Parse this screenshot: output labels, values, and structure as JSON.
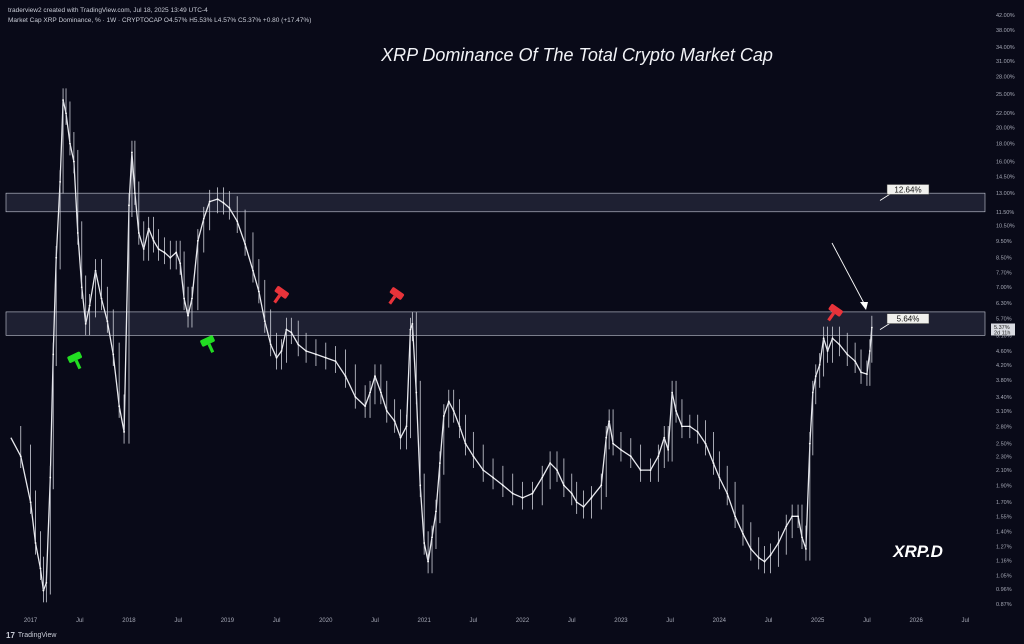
{
  "header": {
    "creator": "traderview2 created with TradingView.com, Jul 18, 2025 13:49 UTC-4",
    "legend": "Market Cap XRP Dominance, % · 1W · CRYPTOCAP  O4.57%  H5.53%  L4.57%  C5.37%  +0.80 (+17.47%)"
  },
  "footer": {
    "brand": "TradingView",
    "logo": "17"
  },
  "chart_data": {
    "type": "line",
    "title": "XRP Dominance Of The Total Crypto Market Cap",
    "symbol": "XRP.D",
    "ylabel": "",
    "xlabel": "",
    "y_scale": "log",
    "ylim": [
      0.82,
      42
    ],
    "y_ticks": [
      42.0,
      38.0,
      34.0,
      31.0,
      28.0,
      25.0,
      22.0,
      20.0,
      18.0,
      16.0,
      14.5,
      13.0,
      11.5,
      10.5,
      9.5,
      8.5,
      7.7,
      7.0,
      6.3,
      5.7,
      5.1,
      4.6,
      4.2,
      3.8,
      3.4,
      3.1,
      2.8,
      2.5,
      2.3,
      2.1,
      1.9,
      1.7,
      1.55,
      1.4,
      1.27,
      1.16,
      1.05,
      0.96,
      0.87
    ],
    "y_tick_labels": [
      "42.00%",
      "38.00%",
      "34.00%",
      "31.00%",
      "28.00%",
      "25.00%",
      "22.00%",
      "20.00%",
      "18.00%",
      "16.00%",
      "14.50%",
      "13.00%",
      "11.50%",
      "10.50%",
      "9.50%",
      "8.50%",
      "7.70%",
      "7.00%",
      "6.30%",
      "5.70%",
      "5.10%",
      "4.60%",
      "4.20%",
      "3.80%",
      "3.40%",
      "3.10%",
      "2.80%",
      "2.50%",
      "2.30%",
      "2.10%",
      "1.90%",
      "1.70%",
      "1.55%",
      "1.40%",
      "1.27%",
      "1.16%",
      "1.05%",
      "0.96%",
      "0.87%"
    ],
    "x_ticks": [
      {
        "label": "2017",
        "t": 2017.0
      },
      {
        "label": "Jul",
        "t": 2017.5
      },
      {
        "label": "2018",
        "t": 2018.0
      },
      {
        "label": "Jul",
        "t": 2018.5
      },
      {
        "label": "2019",
        "t": 2019.0
      },
      {
        "label": "Jul",
        "t": 2019.5
      },
      {
        "label": "2020",
        "t": 2020.0
      },
      {
        "label": "Jul",
        "t": 2020.5
      },
      {
        "label": "2021",
        "t": 2021.0
      },
      {
        "label": "Jul",
        "t": 2021.5
      },
      {
        "label": "2022",
        "t": 2022.0
      },
      {
        "label": "Jul",
        "t": 2022.5
      },
      {
        "label": "2023",
        "t": 2023.0
      },
      {
        "label": "Jul",
        "t": 2023.5
      },
      {
        "label": "2024",
        "t": 2024.0
      },
      {
        "label": "Jul",
        "t": 2024.5
      },
      {
        "label": "2025",
        "t": 2025.0
      },
      {
        "label": "Jul",
        "t": 2025.5
      },
      {
        "label": "2026",
        "t": 2026.0
      },
      {
        "label": "Jul",
        "t": 2026.5
      }
    ],
    "xlim": [
      2016.75,
      2026.7
    ],
    "series": [
      {
        "values": [
          [
            2016.8,
            2.6
          ],
          [
            2016.9,
            2.3
          ],
          [
            2017.0,
            1.7
          ],
          [
            2017.05,
            1.3
          ],
          [
            2017.1,
            1.1
          ],
          [
            2017.13,
            0.95
          ],
          [
            2017.16,
            1.0
          ],
          [
            2017.2,
            2.0
          ],
          [
            2017.23,
            4.5
          ],
          [
            2017.26,
            8.5
          ],
          [
            2017.3,
            14.0
          ],
          [
            2017.33,
            24.0
          ],
          [
            2017.36,
            22.0
          ],
          [
            2017.4,
            18.0
          ],
          [
            2017.44,
            16.0
          ],
          [
            2017.48,
            10.0
          ],
          [
            2017.52,
            7.0
          ],
          [
            2017.56,
            5.5
          ],
          [
            2017.6,
            6.2
          ],
          [
            2017.66,
            7.8
          ],
          [
            2017.72,
            6.5
          ],
          [
            2017.78,
            5.6
          ],
          [
            2017.84,
            4.5
          ],
          [
            2017.9,
            3.2
          ],
          [
            2017.95,
            2.7
          ],
          [
            2018.0,
            12.0
          ],
          [
            2018.03,
            17.0
          ],
          [
            2018.06,
            13.0
          ],
          [
            2018.1,
            10.0
          ],
          [
            2018.15,
            9.0
          ],
          [
            2018.2,
            10.3
          ],
          [
            2018.25,
            9.5
          ],
          [
            2018.3,
            9.0
          ],
          [
            2018.36,
            8.8
          ],
          [
            2018.42,
            8.5
          ],
          [
            2018.48,
            8.8
          ],
          [
            2018.52,
            8.2
          ],
          [
            2018.56,
            6.5
          ],
          [
            2018.6,
            5.8
          ],
          [
            2018.64,
            6.5
          ],
          [
            2018.7,
            9.5
          ],
          [
            2018.76,
            11.0
          ],
          [
            2018.82,
            12.3
          ],
          [
            2018.9,
            12.5
          ],
          [
            2018.96,
            12.2
          ],
          [
            2019.02,
            11.8
          ],
          [
            2019.1,
            10.8
          ],
          [
            2019.18,
            9.3
          ],
          [
            2019.26,
            7.8
          ],
          [
            2019.32,
            6.8
          ],
          [
            2019.38,
            5.6
          ],
          [
            2019.44,
            4.8
          ],
          [
            2019.5,
            4.4
          ],
          [
            2019.55,
            4.6
          ],
          [
            2019.6,
            5.3
          ],
          [
            2019.65,
            5.2
          ],
          [
            2019.72,
            4.8
          ],
          [
            2019.8,
            4.6
          ],
          [
            2019.9,
            4.5
          ],
          [
            2020.0,
            4.4
          ],
          [
            2020.1,
            4.3
          ],
          [
            2020.2,
            3.9
          ],
          [
            2020.3,
            3.4
          ],
          [
            2020.4,
            3.2
          ],
          [
            2020.45,
            3.5
          ],
          [
            2020.5,
            3.9
          ],
          [
            2020.56,
            3.5
          ],
          [
            2020.62,
            3.1
          ],
          [
            2020.7,
            2.9
          ],
          [
            2020.76,
            2.6
          ],
          [
            2020.82,
            2.8
          ],
          [
            2020.86,
            5.3
          ],
          [
            2020.88,
            5.5
          ],
          [
            2020.92,
            3.5
          ],
          [
            2020.96,
            1.9
          ],
          [
            2021.0,
            1.3
          ],
          [
            2021.04,
            1.15
          ],
          [
            2021.08,
            1.35
          ],
          [
            2021.12,
            1.6
          ],
          [
            2021.16,
            2.2
          ],
          [
            2021.2,
            3.0
          ],
          [
            2021.25,
            3.3
          ],
          [
            2021.3,
            3.1
          ],
          [
            2021.36,
            2.8
          ],
          [
            2021.42,
            2.5
          ],
          [
            2021.5,
            2.3
          ],
          [
            2021.6,
            2.1
          ],
          [
            2021.7,
            2.0
          ],
          [
            2021.8,
            1.9
          ],
          [
            2021.9,
            1.8
          ],
          [
            2022.0,
            1.75
          ],
          [
            2022.1,
            1.8
          ],
          [
            2022.2,
            2.0
          ],
          [
            2022.28,
            2.2
          ],
          [
            2022.35,
            2.1
          ],
          [
            2022.42,
            1.9
          ],
          [
            2022.5,
            1.8
          ],
          [
            2022.55,
            1.7
          ],
          [
            2022.62,
            1.65
          ],
          [
            2022.7,
            1.75
          ],
          [
            2022.8,
            1.9
          ],
          [
            2022.85,
            2.6
          ],
          [
            2022.88,
            2.9
          ],
          [
            2022.92,
            2.5
          ],
          [
            2023.0,
            2.4
          ],
          [
            2023.1,
            2.3
          ],
          [
            2023.2,
            2.1
          ],
          [
            2023.3,
            2.1
          ],
          [
            2023.38,
            2.3
          ],
          [
            2023.44,
            2.6
          ],
          [
            2023.48,
            2.4
          ],
          [
            2023.52,
            3.5
          ],
          [
            2023.56,
            3.1
          ],
          [
            2023.62,
            2.8
          ],
          [
            2023.7,
            2.8
          ],
          [
            2023.78,
            2.7
          ],
          [
            2023.86,
            2.5
          ],
          [
            2023.94,
            2.2
          ],
          [
            2024.0,
            2.0
          ],
          [
            2024.08,
            1.8
          ],
          [
            2024.16,
            1.55
          ],
          [
            2024.24,
            1.38
          ],
          [
            2024.32,
            1.25
          ],
          [
            2024.4,
            1.18
          ],
          [
            2024.46,
            1.15
          ],
          [
            2024.52,
            1.2
          ],
          [
            2024.6,
            1.3
          ],
          [
            2024.68,
            1.45
          ],
          [
            2024.74,
            1.55
          ],
          [
            2024.8,
            1.55
          ],
          [
            2024.84,
            1.35
          ],
          [
            2024.88,
            1.25
          ],
          [
            2024.92,
            2.5
          ],
          [
            2024.95,
            3.5
          ],
          [
            2024.98,
            3.9
          ],
          [
            2025.02,
            4.2
          ],
          [
            2025.06,
            5.0
          ],
          [
            2025.1,
            4.6
          ],
          [
            2025.15,
            5.0
          ],
          [
            2025.22,
            4.8
          ],
          [
            2025.3,
            4.5
          ],
          [
            2025.38,
            4.3
          ],
          [
            2025.44,
            4.0
          ],
          [
            2025.5,
            3.95
          ],
          [
            2025.53,
            4.6
          ],
          [
            2025.55,
            5.37
          ]
        ]
      }
    ],
    "zones": [
      {
        "low": 11.5,
        "high": 13.0,
        "label": "12.64%"
      },
      {
        "low": 5.1,
        "high": 5.95,
        "label": "5.64%"
      }
    ],
    "current_price": "5.37%",
    "current_sub": "2d 11h",
    "markers": [
      {
        "kind": "bullish",
        "color": "#22dd22",
        "t": 2017.45,
        "y": 4.4
      },
      {
        "kind": "bullish",
        "color": "#22dd22",
        "t": 2018.8,
        "y": 4.9
      },
      {
        "kind": "bearish",
        "color": "#e8333a",
        "t": 2019.55,
        "y": 6.75
      },
      {
        "kind": "bearish",
        "color": "#e8333a",
        "t": 2020.72,
        "y": 6.7
      },
      {
        "kind": "bearish",
        "color": "#e8333a",
        "t": 2025.18,
        "y": 6.0
      }
    ]
  }
}
